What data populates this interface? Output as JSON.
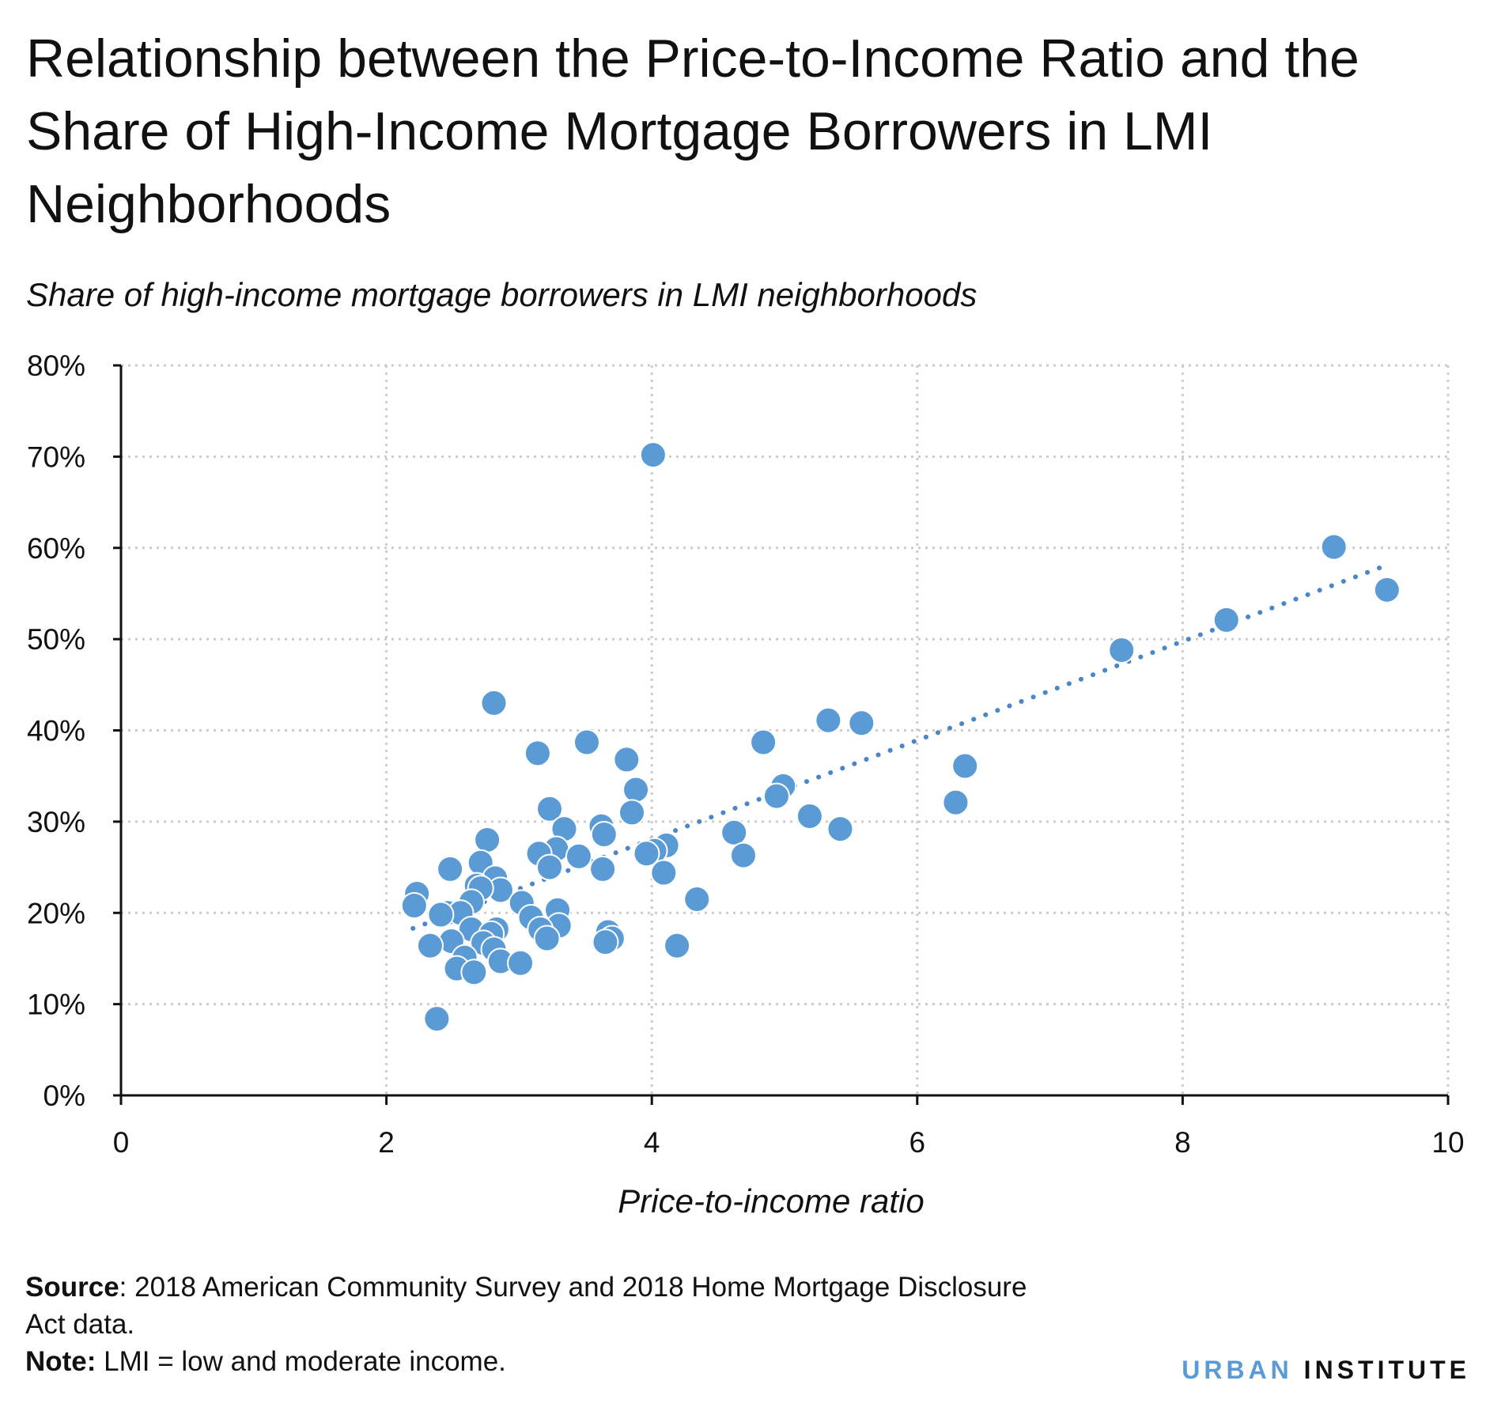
{
  "title": "Relationship between the Price-to-Income Ratio and the Share of High-Income Mortgage Borrowers in LMI Neighborhoods",
  "colors": {
    "points": "#5b9bd5",
    "trend": "#4a86c8",
    "grid": "#cccccc",
    "axis": "#111111"
  },
  "footer": {
    "source_label": "Source",
    "source_text": ": 2018 American Community Survey and 2018 Home Mortgage Disclosure Act data.",
    "note_label": "Note:",
    "note_text": " LMI = low and moderate income."
  },
  "logo": {
    "part1": "URBAN",
    "part2": "INSTITUTE"
  },
  "chart_data": {
    "type": "scatter",
    "ylabel": "Share of high-income mortgage borrowers in LMI neighborhoods",
    "xlabel": "Price-to-income ratio",
    "xlim": [
      0,
      10
    ],
    "ylim": [
      0,
      80
    ],
    "xticks": [
      0,
      2,
      4,
      6,
      8,
      10
    ],
    "yticks": [
      0,
      10,
      20,
      30,
      40,
      50,
      60,
      70,
      80
    ],
    "y_tick_suffix": "%",
    "grid": true,
    "trendline": {
      "style": "dotted",
      "x": [
        2.2,
        9.5
      ],
      "y": [
        18.3,
        57.9
      ]
    },
    "points": [
      [
        4.01,
        70.2
      ],
      [
        9.14,
        60.1
      ],
      [
        9.54,
        55.4
      ],
      [
        8.33,
        52.1
      ],
      [
        7.54,
        48.8
      ],
      [
        2.81,
        43.0
      ],
      [
        5.33,
        41.1
      ],
      [
        5.58,
        40.8
      ],
      [
        4.84,
        38.7
      ],
      [
        3.51,
        38.7
      ],
      [
        3.14,
        37.5
      ],
      [
        3.81,
        36.8
      ],
      [
        6.36,
        36.1
      ],
      [
        4.99,
        33.9
      ],
      [
        3.88,
        33.5
      ],
      [
        4.94,
        32.8
      ],
      [
        6.29,
        32.1
      ],
      [
        3.23,
        31.4
      ],
      [
        3.85,
        31.0
      ],
      [
        5.19,
        30.6
      ],
      [
        3.62,
        29.5
      ],
      [
        5.42,
        29.2
      ],
      [
        3.34,
        29.2
      ],
      [
        4.62,
        28.8
      ],
      [
        3.64,
        28.6
      ],
      [
        2.76,
        28.0
      ],
      [
        4.11,
        27.4
      ],
      [
        3.28,
        27.0
      ],
      [
        4.02,
        26.8
      ],
      [
        3.96,
        26.5
      ],
      [
        3.15,
        26.5
      ],
      [
        4.69,
        26.3
      ],
      [
        3.45,
        26.2
      ],
      [
        2.71,
        25.5
      ],
      [
        3.23,
        25.0
      ],
      [
        2.48,
        24.8
      ],
      [
        3.63,
        24.8
      ],
      [
        4.09,
        24.4
      ],
      [
        2.82,
        23.8
      ],
      [
        2.68,
        23.0
      ],
      [
        2.86,
        22.5
      ],
      [
        2.71,
        22.7
      ],
      [
        2.23,
        22.1
      ],
      [
        4.34,
        21.5
      ],
      [
        2.64,
        21.2
      ],
      [
        3.02,
        21.1
      ],
      [
        2.21,
        20.8
      ],
      [
        2.46,
        20.0
      ],
      [
        2.56,
        20.0
      ],
      [
        3.29,
        20.3
      ],
      [
        2.41,
        19.8
      ],
      [
        3.09,
        19.5
      ],
      [
        3.3,
        18.6
      ],
      [
        2.64,
        18.2
      ],
      [
        2.83,
        18.2
      ],
      [
        3.16,
        18.2
      ],
      [
        2.79,
        17.7
      ],
      [
        3.67,
        17.9
      ],
      [
        3.7,
        17.2
      ],
      [
        3.21,
        17.2
      ],
      [
        2.49,
        16.9
      ],
      [
        2.73,
        16.7
      ],
      [
        3.65,
        16.8
      ],
      [
        2.33,
        16.4
      ],
      [
        4.19,
        16.4
      ],
      [
        2.81,
        16.0
      ],
      [
        2.59,
        15.1
      ],
      [
        2.86,
        14.7
      ],
      [
        3.01,
        14.5
      ],
      [
        2.53,
        13.9
      ],
      [
        2.66,
        13.5
      ],
      [
        2.38,
        8.4
      ]
    ]
  }
}
